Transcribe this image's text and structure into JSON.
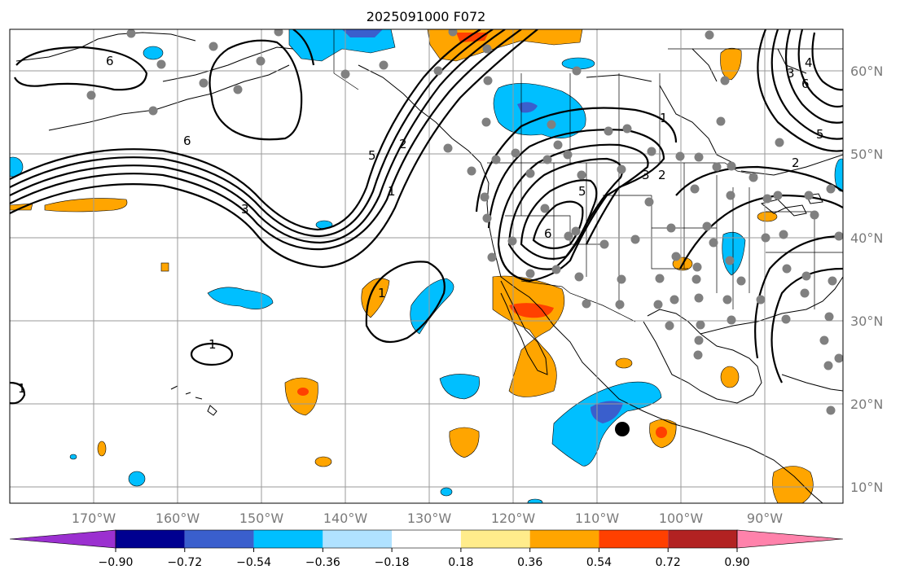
{
  "title": "2025091000 F072",
  "lat_labels": [
    "60°N",
    "50°N",
    "40°N",
    "30°N",
    "20°N",
    "10°N"
  ],
  "lon_labels": [
    "170°W",
    "160°W",
    "150°W",
    "140°W",
    "130°W",
    "120°W",
    "110°W",
    "100°W",
    "90°W"
  ],
  "contour_labels": [
    "6",
    "6",
    "3",
    "5",
    "2",
    "1",
    "1",
    "2",
    "3",
    "5",
    "6",
    "1",
    "1",
    "1",
    "3",
    "4",
    "6",
    "2",
    "5"
  ],
  "colorbar": {
    "ticks": [
      "−0.90",
      "−0.72",
      "−0.54",
      "−0.36",
      "−0.18",
      "0.18",
      "0.36",
      "0.54",
      "0.72",
      "0.90"
    ],
    "colors": [
      "#9b30d0",
      "#000090",
      "#3a5fcd",
      "#00bfff",
      "#b0e2ff",
      "#ffffff",
      "#ffec8b",
      "#ffa500",
      "#ff4000",
      "#b22222",
      "#ff82ab"
    ]
  }
}
